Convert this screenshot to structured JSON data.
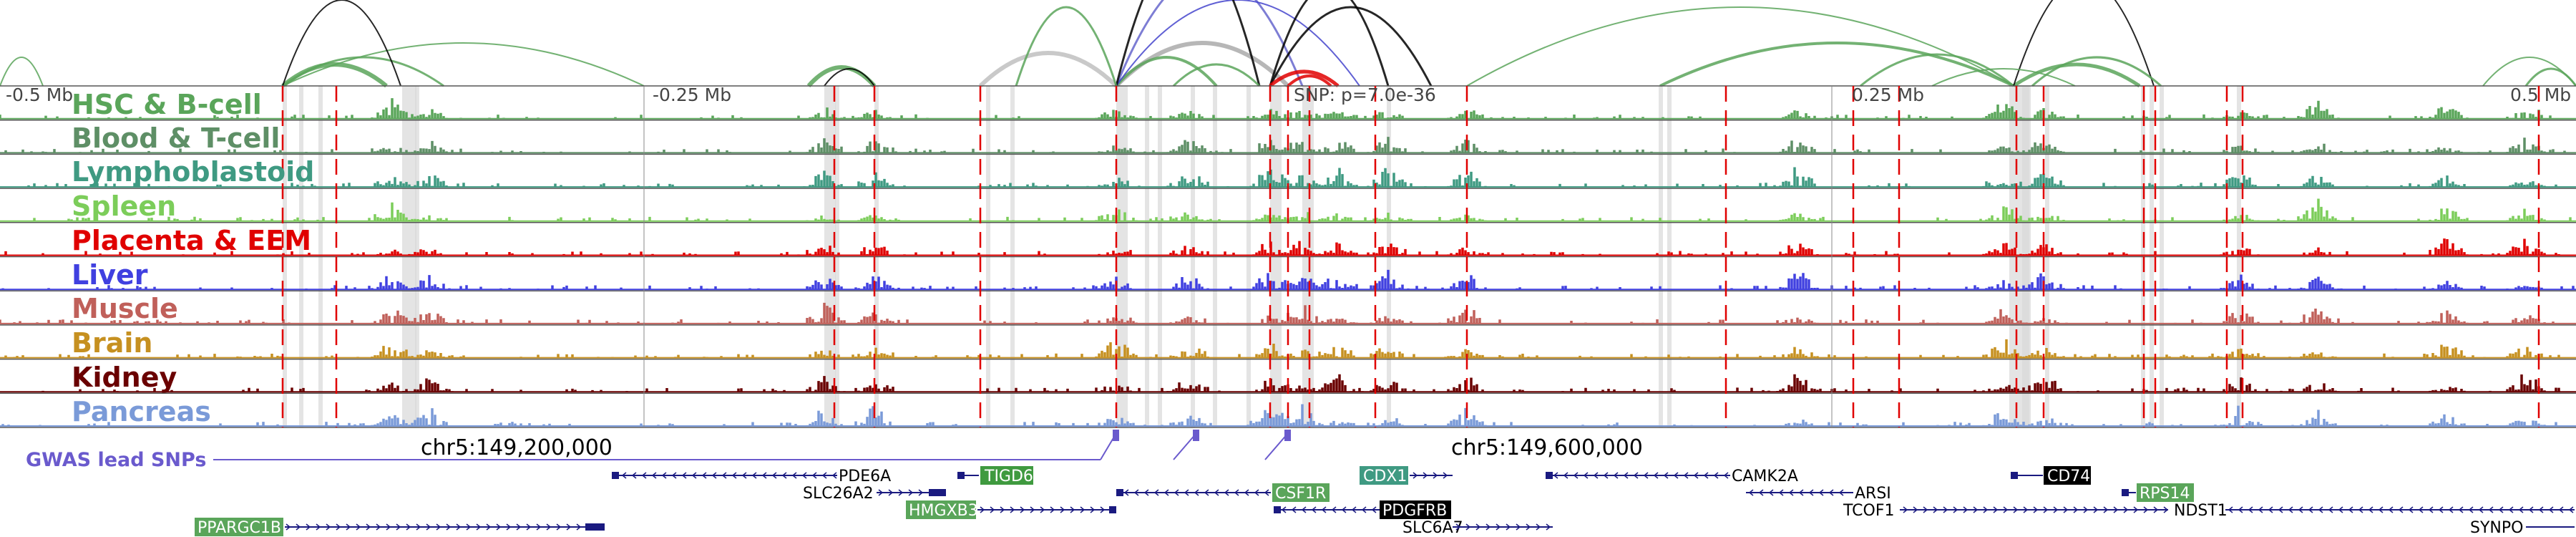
{
  "axis": {
    "left_label": "-0.5 Mb",
    "mid_left_label": "-0.25 Mb",
    "center_label": "SNP: p=7.0e-36",
    "mid_right_label": "0.25 Mb",
    "right_label": "0.5 Mb"
  },
  "tracks": [
    {
      "label": "HSC & B-cell",
      "color": "#5aa55a"
    },
    {
      "label": "Blood & T-cell",
      "color": "#5e8f66"
    },
    {
      "label": "Lymphoblastoid",
      "color": "#3f9a82"
    },
    {
      "label": "Spleen",
      "color": "#7ccd5a"
    },
    {
      "label": "Placenta & EEM",
      "color": "#e00000"
    },
    {
      "label": "Liver",
      "color": "#4040e0"
    },
    {
      "label": "Muscle",
      "color": "#c0605a"
    },
    {
      "label": "Brain",
      "color": "#c69020"
    },
    {
      "label": "Kidney",
      "color": "#6a0000"
    },
    {
      "label": "Pancreas",
      "color": "#7a9ad8"
    }
  ],
  "gwas": {
    "label": "GWAS lead SNPs",
    "color": "#6a5acd"
  },
  "coordinates": {
    "left": "chr5:149,200,000",
    "right": "chr5:149,600,000"
  },
  "genes": [
    {
      "name": "PDE6A",
      "boxed": false,
      "color": "#000000"
    },
    {
      "name": "TIGD6",
      "boxed": true,
      "color": "#3f9a3f"
    },
    {
      "name": "CDX1",
      "boxed": true,
      "color": "#3f9a82"
    },
    {
      "name": "CAMK2A",
      "boxed": false,
      "color": "#000000"
    },
    {
      "name": "CD74",
      "boxed": true,
      "color": "#000000"
    },
    {
      "name": "SLC26A2",
      "boxed": false,
      "color": "#000000"
    },
    {
      "name": "CSF1R",
      "boxed": true,
      "color": "#5aa55a"
    },
    {
      "name": "ARSI",
      "boxed": false,
      "color": "#000000"
    },
    {
      "name": "RPS14",
      "boxed": true,
      "color": "#5aa55a"
    },
    {
      "name": "HMGXB3",
      "boxed": true,
      "color": "#5aa55a"
    },
    {
      "name": "PDGFRB",
      "boxed": true,
      "color": "#000000"
    },
    {
      "name": "TCOF1",
      "boxed": false,
      "color": "#000000"
    },
    {
      "name": "NDST1",
      "boxed": false,
      "color": "#000000"
    },
    {
      "name": "PPARGC1B",
      "boxed": true,
      "color": "#5aa55a"
    },
    {
      "name": "SLC6A7",
      "boxed": false,
      "color": "#000000"
    },
    {
      "name": "SYNPO",
      "boxed": false,
      "color": "#000000"
    }
  ]
}
